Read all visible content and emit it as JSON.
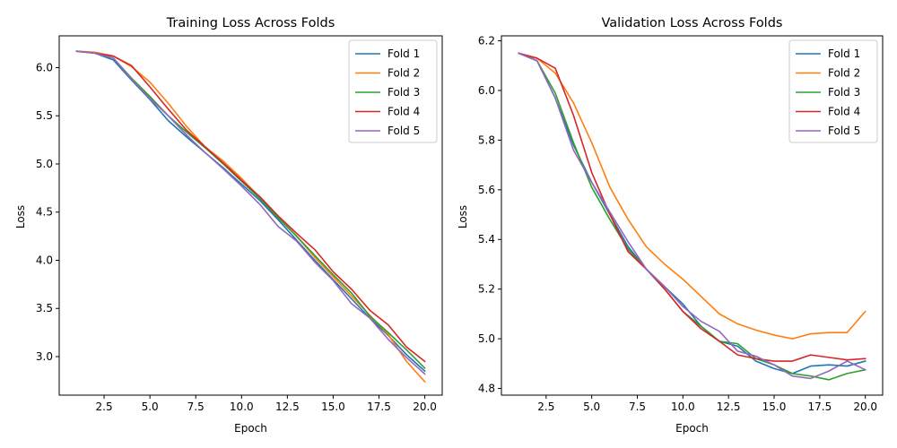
{
  "chart_data": [
    {
      "type": "line",
      "title": "Training Loss Across Folds",
      "xlabel": "Epoch",
      "ylabel": "Loss",
      "xlim": [
        0.05,
        20.95
      ],
      "ylim": [
        2.6,
        6.33
      ],
      "xticks": [
        2.5,
        5.0,
        7.5,
        10.0,
        12.5,
        15.0,
        17.5,
        20.0
      ],
      "xtick_labels": [
        "2.5",
        "5.0",
        "7.5",
        "10.0",
        "12.5",
        "15.0",
        "17.5",
        "20.0"
      ],
      "yticks": [
        3.0,
        3.5,
        4.0,
        4.5,
        5.0,
        5.5,
        6.0
      ],
      "ytick_labels": [
        "3.0",
        "3.5",
        "4.0",
        "4.5",
        "5.0",
        "5.5",
        "6.0"
      ],
      "legend_position": "upper-right",
      "x": [
        1,
        2,
        3,
        4,
        5,
        6,
        7,
        8,
        9,
        10,
        11,
        12,
        13,
        14,
        15,
        16,
        17,
        18,
        19,
        20
      ],
      "series": [
        {
          "name": "Fold 1",
          "color": "#1f77b4",
          "values": [
            6.17,
            6.15,
            6.08,
            5.87,
            5.67,
            5.45,
            5.28,
            5.12,
            4.96,
            4.79,
            4.62,
            4.42,
            4.21,
            4.0,
            3.8,
            3.6,
            3.4,
            3.22,
            3.02,
            2.85
          ]
        },
        {
          "name": "Fold 2",
          "color": "#ff7f0e",
          "values": [
            6.17,
            6.16,
            6.12,
            6.01,
            5.85,
            5.63,
            5.39,
            5.18,
            5.03,
            4.85,
            4.65,
            4.45,
            4.25,
            4.03,
            3.83,
            3.63,
            3.43,
            3.23,
            2.95,
            2.74
          ]
        },
        {
          "name": "Fold 3",
          "color": "#2ca02c",
          "values": [
            6.17,
            6.15,
            6.1,
            5.89,
            5.7,
            5.5,
            5.33,
            5.17,
            5.0,
            4.82,
            4.64,
            4.44,
            4.25,
            4.05,
            3.85,
            3.66,
            3.42,
            3.25,
            3.07,
            2.88
          ]
        },
        {
          "name": "Fold 4",
          "color": "#d62728",
          "values": [
            6.17,
            6.15,
            6.12,
            6.02,
            5.8,
            5.57,
            5.35,
            5.18,
            5.01,
            4.83,
            4.66,
            4.46,
            4.28,
            4.11,
            3.88,
            3.7,
            3.48,
            3.33,
            3.1,
            2.95
          ]
        },
        {
          "name": "Fold 5",
          "color": "#9467bd",
          "values": [
            6.17,
            6.15,
            6.1,
            5.88,
            5.68,
            5.5,
            5.3,
            5.12,
            4.95,
            4.77,
            4.58,
            4.35,
            4.2,
            3.98,
            3.79,
            3.55,
            3.4,
            3.18,
            2.99,
            2.82
          ]
        }
      ]
    },
    {
      "type": "line",
      "title": "Validation Loss Across Folds",
      "xlabel": "Epoch",
      "ylabel": "Loss",
      "xlim": [
        0.05,
        20.95
      ],
      "ylim": [
        4.773,
        6.22
      ],
      "xticks": [
        2.5,
        5.0,
        7.5,
        10.0,
        12.5,
        15.0,
        17.5,
        20.0
      ],
      "xtick_labels": [
        "2.5",
        "5.0",
        "7.5",
        "10.0",
        "12.5",
        "15.0",
        "17.5",
        "20.0"
      ],
      "yticks": [
        4.8,
        5.0,
        5.2,
        5.4,
        5.6,
        5.8,
        6.0,
        6.2
      ],
      "ytick_labels": [
        "4.8",
        "5.0",
        "5.2",
        "5.4",
        "5.6",
        "5.8",
        "6.0",
        "6.2"
      ],
      "legend_position": "upper-right",
      "x": [
        1,
        2,
        3,
        4,
        5,
        6,
        7,
        8,
        9,
        10,
        11,
        12,
        13,
        14,
        15,
        16,
        17,
        18,
        19,
        20
      ],
      "series": [
        {
          "name": "Fold 1",
          "color": "#1f77b4",
          "values": [
            6.15,
            6.12,
            5.97,
            5.78,
            5.63,
            5.5,
            5.37,
            5.28,
            5.21,
            5.14,
            5.05,
            4.99,
            4.97,
            4.91,
            4.88,
            4.86,
            4.89,
            4.895,
            4.89,
            4.91
          ]
        },
        {
          "name": "Fold 2",
          "color": "#ff7f0e",
          "values": [
            6.15,
            6.13,
            6.07,
            5.95,
            5.79,
            5.61,
            5.48,
            5.37,
            5.3,
            5.24,
            5.17,
            5.1,
            5.06,
            5.035,
            5.015,
            5.0,
            5.02,
            5.025,
            5.025,
            5.11
          ]
        },
        {
          "name": "Fold 3",
          "color": "#2ca02c",
          "values": [
            6.15,
            6.12,
            5.99,
            5.79,
            5.61,
            5.48,
            5.36,
            5.28,
            5.2,
            5.11,
            5.05,
            4.99,
            4.98,
            4.92,
            4.895,
            4.86,
            4.85,
            4.835,
            4.86,
            4.875
          ]
        },
        {
          "name": "Fold 4",
          "color": "#d62728",
          "values": [
            6.15,
            6.13,
            6.09,
            5.9,
            5.67,
            5.5,
            5.35,
            5.28,
            5.2,
            5.11,
            5.04,
            4.99,
            4.935,
            4.92,
            4.91,
            4.91,
            4.935,
            4.925,
            4.915,
            4.92
          ]
        },
        {
          "name": "Fold 5",
          "color": "#9467bd",
          "values": [
            6.15,
            6.12,
            5.97,
            5.76,
            5.63,
            5.51,
            5.39,
            5.28,
            5.21,
            5.13,
            5.07,
            5.03,
            4.95,
            4.93,
            4.895,
            4.85,
            4.84,
            4.87,
            4.91,
            4.875
          ]
        }
      ]
    }
  ]
}
